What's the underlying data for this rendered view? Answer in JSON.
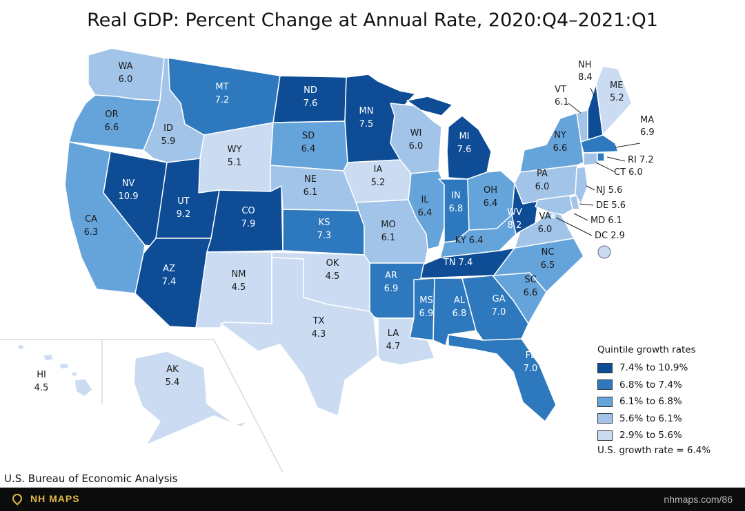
{
  "title": "Real GDP: Percent Change at Annual Rate, 2020:Q4–2021:Q1",
  "colors": {
    "q1": "#0e4d96",
    "q2": "#2e78bd",
    "q3": "#65a3db",
    "q4": "#a2c4e9",
    "q5": "#cbdcf2",
    "border": "#ffffff",
    "outline": "#2a4f7a"
  },
  "states": [
    {
      "abbr": "WA",
      "value": "6.0",
      "class": "q4"
    },
    {
      "abbr": "OR",
      "value": "6.6",
      "class": "q3"
    },
    {
      "abbr": "CA",
      "value": "6.3",
      "class": "q3"
    },
    {
      "abbr": "NV",
      "value": "10.9",
      "class": "q1"
    },
    {
      "abbr": "ID",
      "value": "5.9",
      "class": "q4"
    },
    {
      "abbr": "MT",
      "value": "7.2",
      "class": "q2"
    },
    {
      "abbr": "WY",
      "value": "5.1",
      "class": "q5"
    },
    {
      "abbr": "UT",
      "value": "9.2",
      "class": "q1"
    },
    {
      "abbr": "AZ",
      "value": "7.4",
      "class": "q1"
    },
    {
      "abbr": "CO",
      "value": "7.9",
      "class": "q1"
    },
    {
      "abbr": "NM",
      "value": "4.5",
      "class": "q5"
    },
    {
      "abbr": "ND",
      "value": "7.6",
      "class": "q1"
    },
    {
      "abbr": "SD",
      "value": "6.4",
      "class": "q3"
    },
    {
      "abbr": "NE",
      "value": "6.1",
      "class": "q4"
    },
    {
      "abbr": "KS",
      "value": "7.3",
      "class": "q2"
    },
    {
      "abbr": "OK",
      "value": "4.5",
      "class": "q5"
    },
    {
      "abbr": "TX",
      "value": "4.3",
      "class": "q5"
    },
    {
      "abbr": "MN",
      "value": "7.5",
      "class": "q1"
    },
    {
      "abbr": "IA",
      "value": "5.2",
      "class": "q5"
    },
    {
      "abbr": "MO",
      "value": "6.1",
      "class": "q4"
    },
    {
      "abbr": "AR",
      "value": "6.9",
      "class": "q2"
    },
    {
      "abbr": "LA",
      "value": "4.7",
      "class": "q5"
    },
    {
      "abbr": "WI",
      "value": "6.0",
      "class": "q4"
    },
    {
      "abbr": "IL",
      "value": "6.4",
      "class": "q3"
    },
    {
      "abbr": "MI",
      "value": "7.6",
      "class": "q1"
    },
    {
      "abbr": "IN",
      "value": "6.8",
      "class": "q2"
    },
    {
      "abbr": "OH",
      "value": "6.4",
      "class": "q3"
    },
    {
      "abbr": "KY",
      "value": "6.4",
      "class": "q3"
    },
    {
      "abbr": "TN",
      "value": "7.4",
      "class": "q1"
    },
    {
      "abbr": "MS",
      "value": "6.9",
      "class": "q2"
    },
    {
      "abbr": "AL",
      "value": "6.8",
      "class": "q2"
    },
    {
      "abbr": "GA",
      "value": "7.0",
      "class": "q2"
    },
    {
      "abbr": "FL",
      "value": "7.0",
      "class": "q2"
    },
    {
      "abbr": "SC",
      "value": "6.6",
      "class": "q3"
    },
    {
      "abbr": "NC",
      "value": "6.5",
      "class": "q3"
    },
    {
      "abbr": "VA",
      "value": "6.0",
      "class": "q4"
    },
    {
      "abbr": "WV",
      "value": "8.2",
      "class": "q1"
    },
    {
      "abbr": "PA",
      "value": "6.0",
      "class": "q4"
    },
    {
      "abbr": "NY",
      "value": "6.6",
      "class": "q3"
    },
    {
      "abbr": "VT",
      "value": "6.1",
      "class": "q4"
    },
    {
      "abbr": "NH",
      "value": "8.4",
      "class": "q1"
    },
    {
      "abbr": "ME",
      "value": "5.2",
      "class": "q5"
    },
    {
      "abbr": "MA",
      "value": "6.9",
      "class": "q2"
    },
    {
      "abbr": "RI",
      "value": "7.2",
      "class": "q2"
    },
    {
      "abbr": "CT",
      "value": "6.0",
      "class": "q4"
    },
    {
      "abbr": "NJ",
      "value": "5.6",
      "class": "q4"
    },
    {
      "abbr": "DE",
      "value": "5.6",
      "class": "q4"
    },
    {
      "abbr": "MD",
      "value": "6.1",
      "class": "q4"
    },
    {
      "abbr": "DC",
      "value": "2.9",
      "class": "q5"
    },
    {
      "abbr": "AK",
      "value": "5.4",
      "class": "q5"
    },
    {
      "abbr": "HI",
      "value": "4.5",
      "class": "q5"
    }
  ],
  "legend": {
    "title": "Quintile growth rates",
    "items": [
      {
        "label": "7.4% to 10.9%",
        "color": "#0e4d96"
      },
      {
        "label": "6.8% to 7.4%",
        "color": "#2e78bd"
      },
      {
        "label": "6.1% to 6.8%",
        "color": "#65a3db"
      },
      {
        "label": "5.6% to 6.1%",
        "color": "#a2c4e9"
      },
      {
        "label": "2.9% to 5.6%",
        "color": "#cbdcf2"
      }
    ],
    "us_rate": "U.S. growth rate = 6.4%"
  },
  "source": "U.S. Bureau of Economic Analysis",
  "footer": {
    "brand": "NH MAPS",
    "url": "nhmaps.com/86"
  }
}
